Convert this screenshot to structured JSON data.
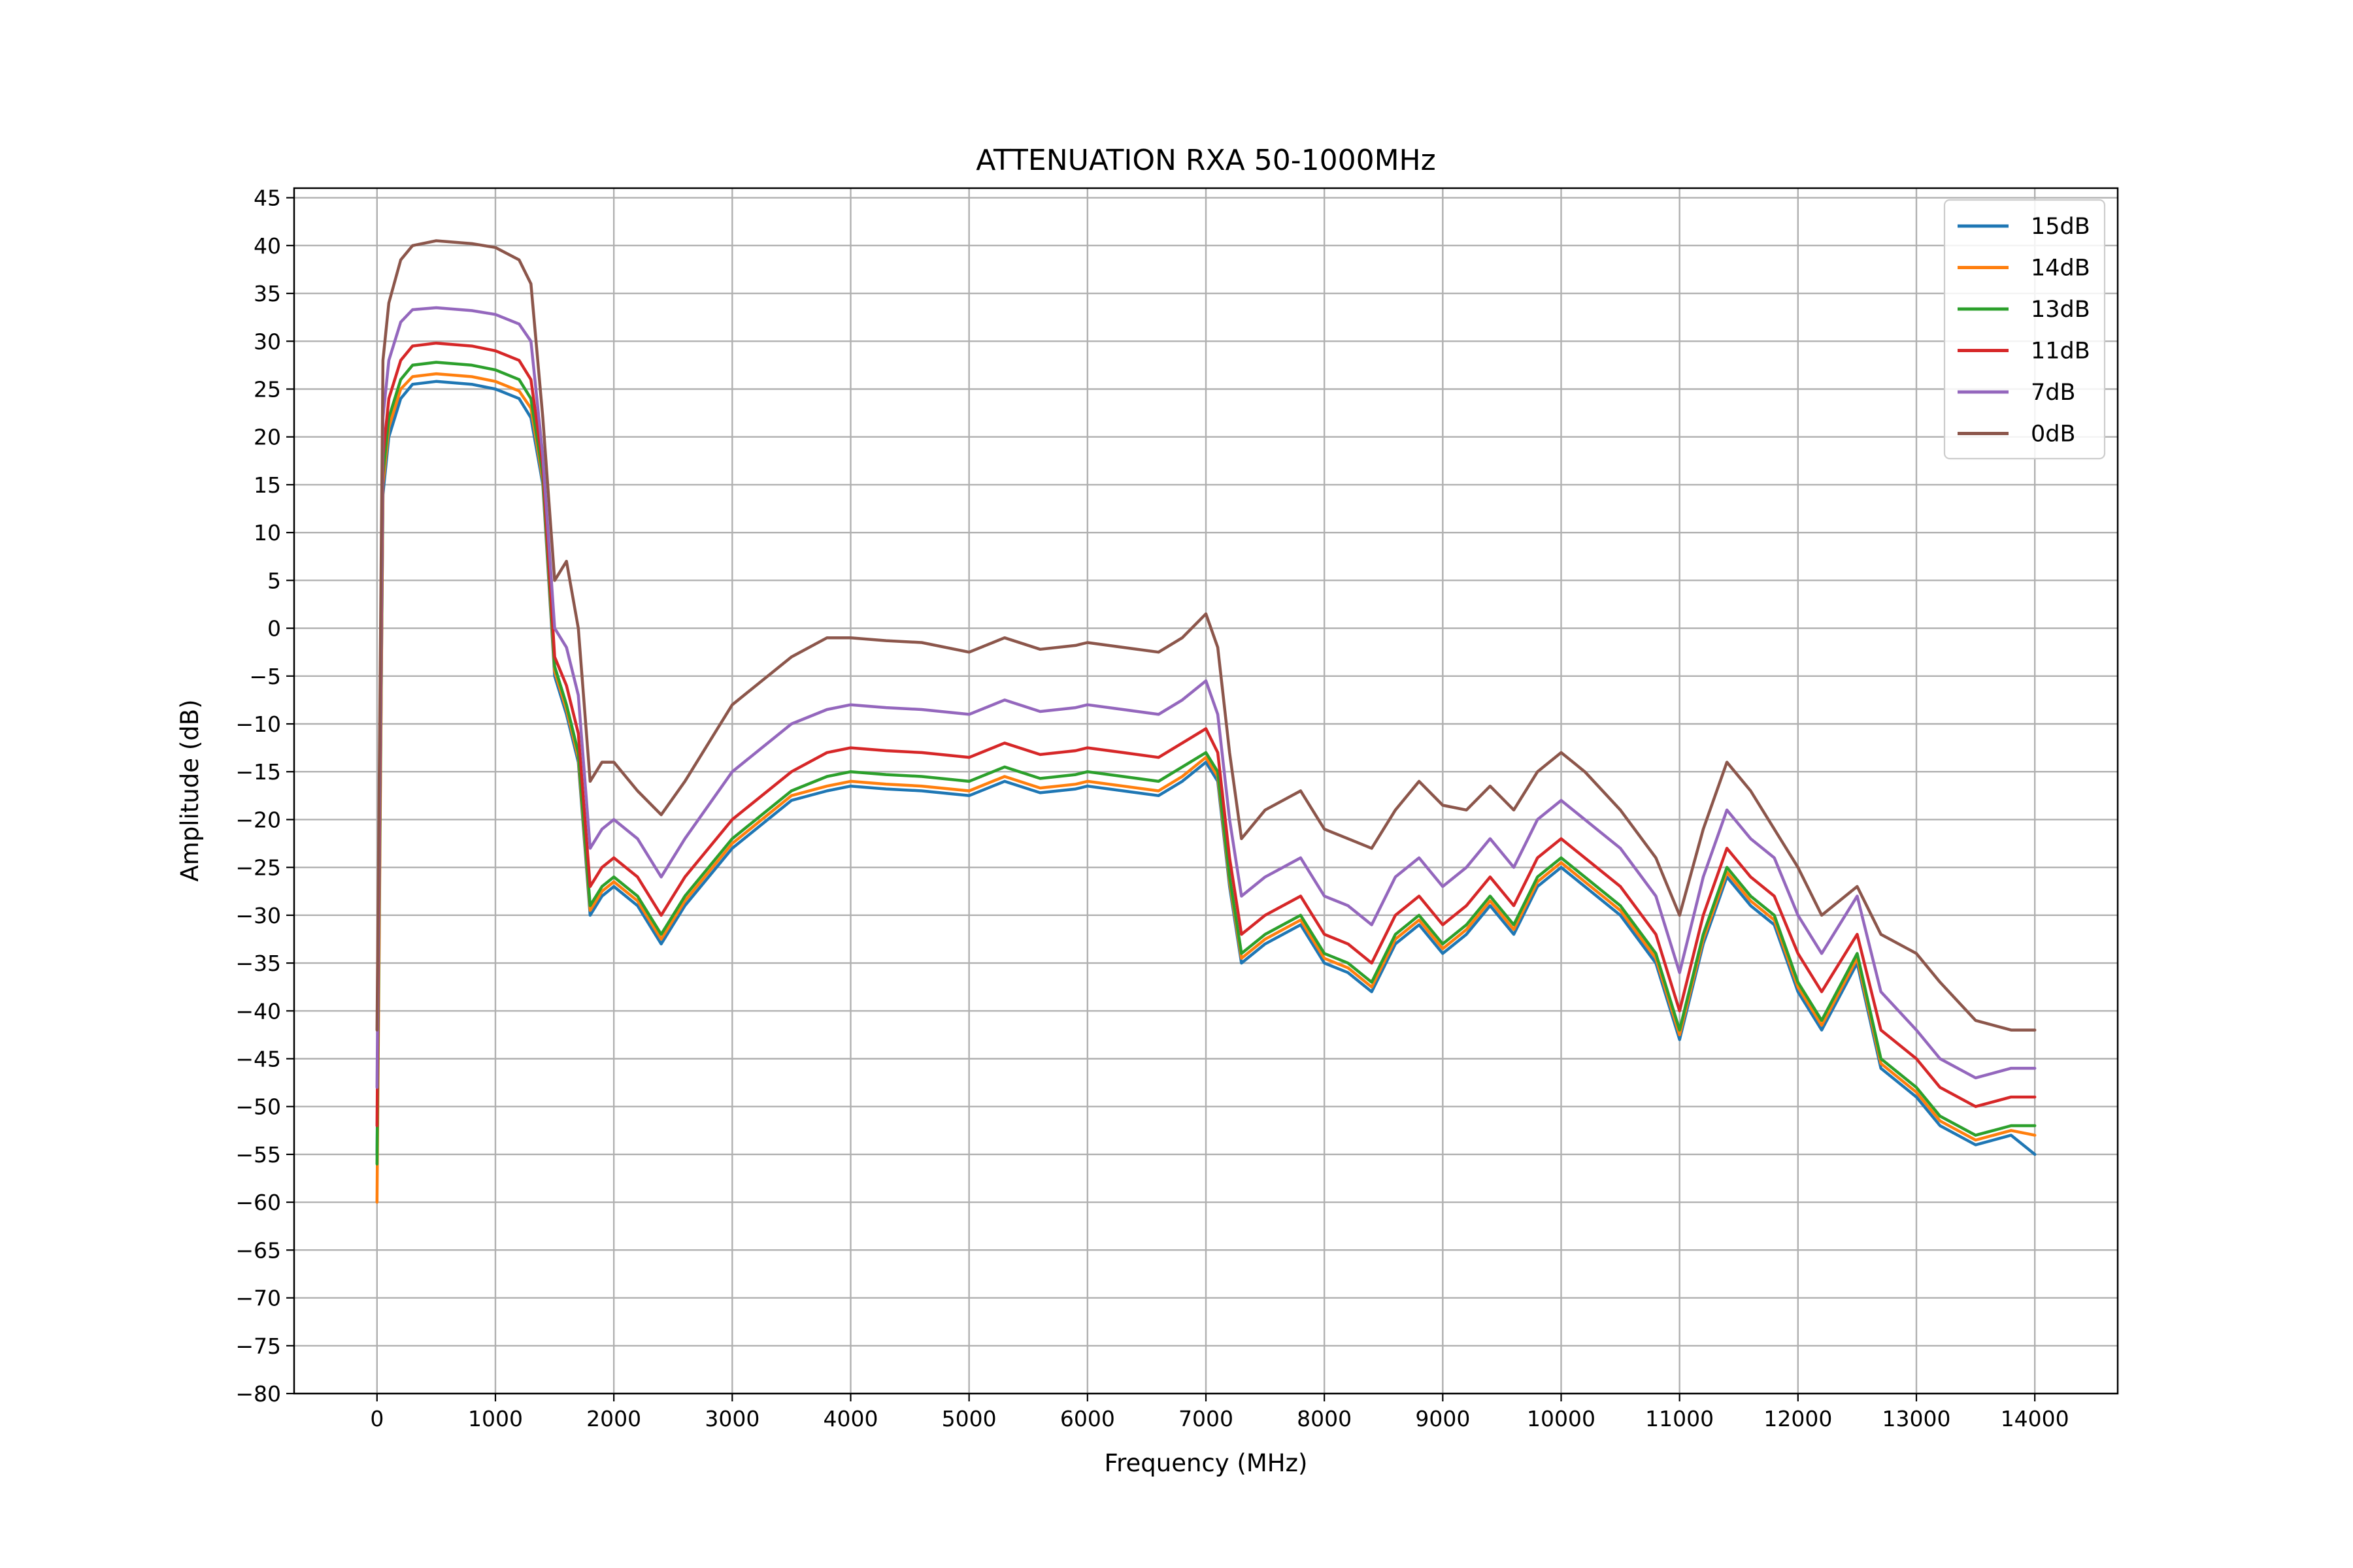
{
  "chart_data": {
    "type": "line",
    "title": "ATTENUATION RXA 50-1000MHz",
    "xlabel": "Frequency (MHz)",
    "ylabel": "Amplitude (dB)",
    "xlim": [
      -700,
      14700
    ],
    "ylim": [
      -80,
      46
    ],
    "x_ticks": [
      0,
      1000,
      2000,
      3000,
      4000,
      5000,
      6000,
      7000,
      8000,
      9000,
      10000,
      11000,
      12000,
      13000,
      14000
    ],
    "x_tick_labels": [
      "0",
      "1000",
      "2000",
      "3000",
      "4000",
      "5000",
      "6000",
      "7000",
      "8000",
      "9000",
      "10000",
      "11000",
      "12000",
      "13000",
      "14000"
    ],
    "y_ticks": [
      45,
      40,
      35,
      30,
      25,
      20,
      15,
      10,
      5,
      0,
      -5,
      -10,
      -15,
      -20,
      -25,
      -30,
      -35,
      -40,
      -45,
      -50,
      -55,
      -60,
      -65,
      -70,
      -75,
      -80
    ],
    "y_tick_labels": [
      "45",
      "40",
      "35",
      "30",
      "25",
      "20",
      "15",
      "10",
      "5",
      "0",
      "−5",
      "−10",
      "−15",
      "−20",
      "−25",
      "−30",
      "−35",
      "−40",
      "−45",
      "−50",
      "−55",
      "−60",
      "−65",
      "−70",
      "−75",
      "−80"
    ],
    "grid": true,
    "legend_position": "top-right",
    "x": [
      0,
      50,
      100,
      200,
      300,
      500,
      800,
      1000,
      1200,
      1300,
      1400,
      1500,
      1600,
      1700,
      1800,
      1900,
      2000,
      2200,
      2400,
      2600,
      3000,
      3500,
      3800,
      4000,
      4300,
      4600,
      5000,
      5300,
      5600,
      5900,
      6000,
      6300,
      6600,
      6800,
      7000,
      7100,
      7200,
      7300,
      7500,
      7800,
      8000,
      8200,
      8400,
      8600,
      8800,
      9000,
      9200,
      9400,
      9600,
      9800,
      10000,
      10200,
      10500,
      10800,
      11000,
      11200,
      11400,
      11600,
      11800,
      12000,
      12200,
      12500,
      12700,
      13000,
      13200,
      13500,
      13800,
      14000
    ],
    "series": [
      {
        "name": "15dB",
        "color": "#1f77b4",
        "values": [
          -55,
          14,
          20,
          24,
          25.5,
          25.8,
          25.5,
          25,
          24,
          22,
          15,
          -5,
          -9,
          -14,
          -30,
          -28,
          -27,
          -29,
          -33,
          -29,
          -23,
          -18,
          -17,
          -16.5,
          -16.8,
          -17,
          -17.5,
          -16,
          -17.2,
          -16.8,
          -16.5,
          -17,
          -17.5,
          -16,
          -14,
          -16,
          -27,
          -35,
          -33,
          -31,
          -35,
          -36,
          -38,
          -33,
          -31,
          -34,
          -32,
          -29,
          -32,
          -27,
          -25,
          -27,
          -30,
          -35,
          -43,
          -33,
          -26,
          -29,
          -31,
          -38,
          -42,
          -35,
          -46,
          -49,
          -52,
          -54,
          -53,
          -55
        ]
      },
      {
        "name": "14dB",
        "color": "#ff7f0e",
        "values": [
          -60,
          15,
          21,
          25,
          26.3,
          26.6,
          26.3,
          25.8,
          24.8,
          23,
          15.5,
          -4.5,
          -8.5,
          -13.5,
          -29.5,
          -27.5,
          -26.5,
          -28.5,
          -32.5,
          -28.5,
          -22.5,
          -17.5,
          -16.5,
          -16,
          -16.3,
          -16.5,
          -17,
          -15.5,
          -16.7,
          -16.3,
          -16,
          -16.5,
          -17,
          -15.5,
          -13.5,
          -15.5,
          -26.5,
          -34.5,
          -32.5,
          -30.5,
          -34.5,
          -35.5,
          -37.5,
          -32.5,
          -30.5,
          -33.5,
          -31.5,
          -28.5,
          -31.5,
          -26.5,
          -24.5,
          -26.5,
          -29.5,
          -34.5,
          -42.5,
          -32.5,
          -25.5,
          -28.5,
          -30.5,
          -37.5,
          -41.5,
          -34.5,
          -45.5,
          -48.5,
          -51.5,
          -53.5,
          -52.5,
          -53
        ]
      },
      {
        "name": "13dB",
        "color": "#2ca02c",
        "values": [
          -56,
          16,
          22,
          26,
          27.5,
          27.8,
          27.5,
          27,
          26,
          24,
          16,
          -4,
          -8,
          -13,
          -29,
          -27,
          -26,
          -28,
          -32,
          -28,
          -22,
          -17,
          -15.5,
          -15,
          -15.3,
          -15.5,
          -16,
          -14.5,
          -15.7,
          -15.3,
          -15,
          -15.5,
          -16,
          -14.5,
          -13,
          -15,
          -26,
          -34,
          -32,
          -30,
          -34,
          -35,
          -37,
          -32,
          -30,
          -33,
          -31,
          -28,
          -31,
          -26,
          -24,
          -26,
          -29,
          -34,
          -42,
          -32,
          -25,
          -28,
          -30,
          -37,
          -41,
          -34,
          -45,
          -48,
          -51,
          -53,
          -52,
          -52
        ]
      },
      {
        "name": "11dB",
        "color": "#d62728",
        "values": [
          -52,
          18,
          24,
          28,
          29.5,
          29.8,
          29.5,
          29,
          28,
          26,
          17,
          -3,
          -6,
          -11,
          -27,
          -25,
          -24,
          -26,
          -30,
          -26,
          -20,
          -15,
          -13,
          -12.5,
          -12.8,
          -13,
          -13.5,
          -12,
          -13.2,
          -12.8,
          -12.5,
          -13,
          -13.5,
          -12,
          -10.5,
          -13,
          -24,
          -32,
          -30,
          -28,
          -32,
          -33,
          -35,
          -30,
          -28,
          -31,
          -29,
          -26,
          -29,
          -24,
          -22,
          -24,
          -27,
          -32,
          -40,
          -30,
          -23,
          -26,
          -28,
          -34,
          -38,
          -32,
          -42,
          -45,
          -48,
          -50,
          -49,
          -49
        ]
      },
      {
        "name": "7dB",
        "color": "#9467bd",
        "values": [
          -48,
          22,
          28,
          32,
          33.3,
          33.5,
          33.2,
          32.8,
          31.8,
          30,
          18,
          0,
          -2,
          -7,
          -23,
          -21,
          -20,
          -22,
          -26,
          -22,
          -15,
          -10,
          -8.5,
          -8,
          -8.3,
          -8.5,
          -9,
          -7.5,
          -8.7,
          -8.3,
          -8,
          -8.5,
          -9,
          -7.5,
          -5.5,
          -9,
          -20,
          -28,
          -26,
          -24,
          -28,
          -29,
          -31,
          -26,
          -24,
          -27,
          -25,
          -22,
          -25,
          -20,
          -18,
          -20,
          -23,
          -28,
          -36,
          -26,
          -19,
          -22,
          -24,
          -30,
          -34,
          -28,
          -38,
          -42,
          -45,
          -47,
          -46,
          -46
        ]
      },
      {
        "name": "0dB",
        "color": "#8c564b",
        "values": [
          -42,
          28,
          34,
          38.5,
          40,
          40.5,
          40.2,
          39.8,
          38.5,
          36,
          22,
          5,
          7,
          0,
          -16,
          -14,
          -14,
          -17,
          -19.5,
          -16,
          -8,
          -3,
          -1,
          -1,
          -1.3,
          -1.5,
          -2.5,
          -1,
          -2.2,
          -1.8,
          -1.5,
          -2,
          -2.5,
          -1,
          1.5,
          -2,
          -13,
          -22,
          -19,
          -17,
          -21,
          -22,
          -23,
          -19,
          -16,
          -18.5,
          -19,
          -16.5,
          -19,
          -15,
          -13,
          -15,
          -19,
          -24,
          -30,
          -21,
          -14,
          -17,
          -21,
          -25,
          -30,
          -27,
          -32,
          -34,
          -37,
          -41,
          -42,
          -42
        ]
      }
    ]
  }
}
